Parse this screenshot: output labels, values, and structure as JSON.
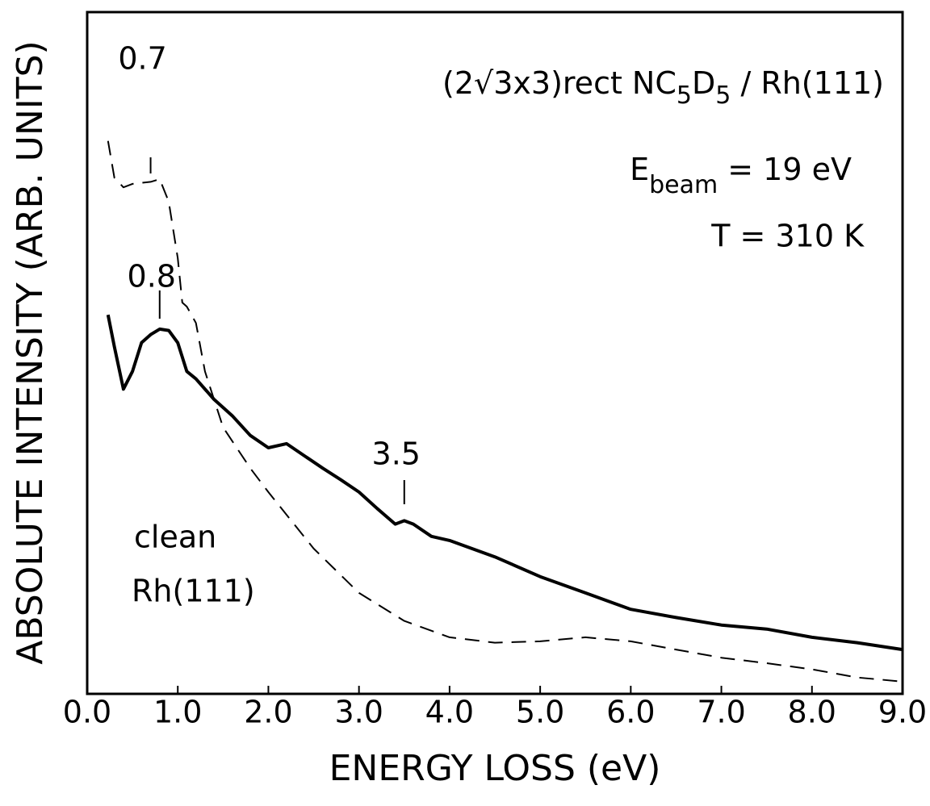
{
  "chart_data": {
    "type": "line",
    "xlabel": "ENERGY LOSS (eV)",
    "ylabel": "ABSOLUTE INTENSITY (ARB. UNITS)",
    "header_lines": [
      [
        "(2√3x3)rect NC",
        "5",
        "D",
        "5",
        " / Rh(111)"
      ],
      [
        "E",
        "beam",
        " = 19 eV"
      ],
      [
        "T = 310 K"
      ]
    ],
    "series_labels": [
      "clean",
      "Rh(111)"
    ],
    "peak_labels": [
      {
        "label": "0.7",
        "x": 0.7
      },
      {
        "label": "0.8",
        "x": 0.8
      },
      {
        "label": "3.5",
        "x": 3.5
      }
    ],
    "xlim": [
      0,
      9
    ],
    "xticks": [
      {
        "value": 0,
        "label": "0.0"
      },
      {
        "value": 1,
        "label": "1.0"
      },
      {
        "value": 2,
        "label": "2.0"
      },
      {
        "value": 3,
        "label": "3.0"
      },
      {
        "value": 4,
        "label": "4.0"
      },
      {
        "value": 5,
        "label": "5.0"
      },
      {
        "value": 6,
        "label": "6.0"
      },
      {
        "value": 7,
        "label": "7.0"
      },
      {
        "value": 8,
        "label": "8.0"
      },
      {
        "value": 9,
        "label": "9.0"
      }
    ],
    "ylim": [
      0,
      100
    ],
    "series": [
      {
        "color": "#000000",
        "linestyle": "solid",
        "x": [
          0.23,
          0.3,
          0.4,
          0.5,
          0.6,
          0.7,
          0.8,
          0.9,
          1.0,
          1.1,
          1.2,
          1.4,
          1.6,
          1.8,
          2.0,
          2.2,
          2.4,
          2.6,
          2.8,
          3.0,
          3.2,
          3.4,
          3.5,
          3.6,
          3.8,
          4.0,
          4.5,
          5.0,
          5.5,
          6.0,
          6.5,
          7.0,
          7.5,
          8.0,
          8.5,
          9.0
        ],
        "values": [
          55.6,
          50.9,
          44.7,
          47.3,
          51.5,
          52.7,
          53.5,
          53.3,
          51.5,
          47.3,
          46.2,
          43.2,
          40.8,
          37.9,
          36.1,
          36.7,
          34.9,
          33.1,
          31.4,
          29.6,
          27.2,
          24.9,
          25.4,
          24.9,
          23.1,
          22.5,
          20.1,
          17.2,
          14.8,
          12.4,
          11.2,
          10.1,
          9.5,
          8.3,
          7.5,
          6.5
        ]
      },
      {
        "color": "#000000",
        "linestyle": "dashed",
        "x": [
          0.23,
          0.3,
          0.4,
          0.5,
          0.7,
          0.8,
          0.9,
          1.0,
          1.05,
          1.1,
          1.2,
          1.3,
          1.5,
          1.8,
          2.0,
          2.5,
          3.0,
          3.5,
          4.0,
          4.5,
          5.0,
          5.5,
          6.0,
          6.5,
          7.0,
          7.5,
          8.0,
          8.5,
          9.0
        ],
        "values": [
          81.1,
          75.7,
          74.3,
          74.8,
          75.1,
          75.5,
          72.2,
          63.9,
          57.4,
          56.8,
          54.4,
          47.3,
          39.1,
          33.1,
          29.6,
          21.3,
          14.8,
          10.7,
          8.3,
          7.5,
          7.7,
          8.3,
          7.7,
          6.5,
          5.3,
          4.5,
          3.6,
          2.4,
          1.8
        ]
      }
    ]
  }
}
